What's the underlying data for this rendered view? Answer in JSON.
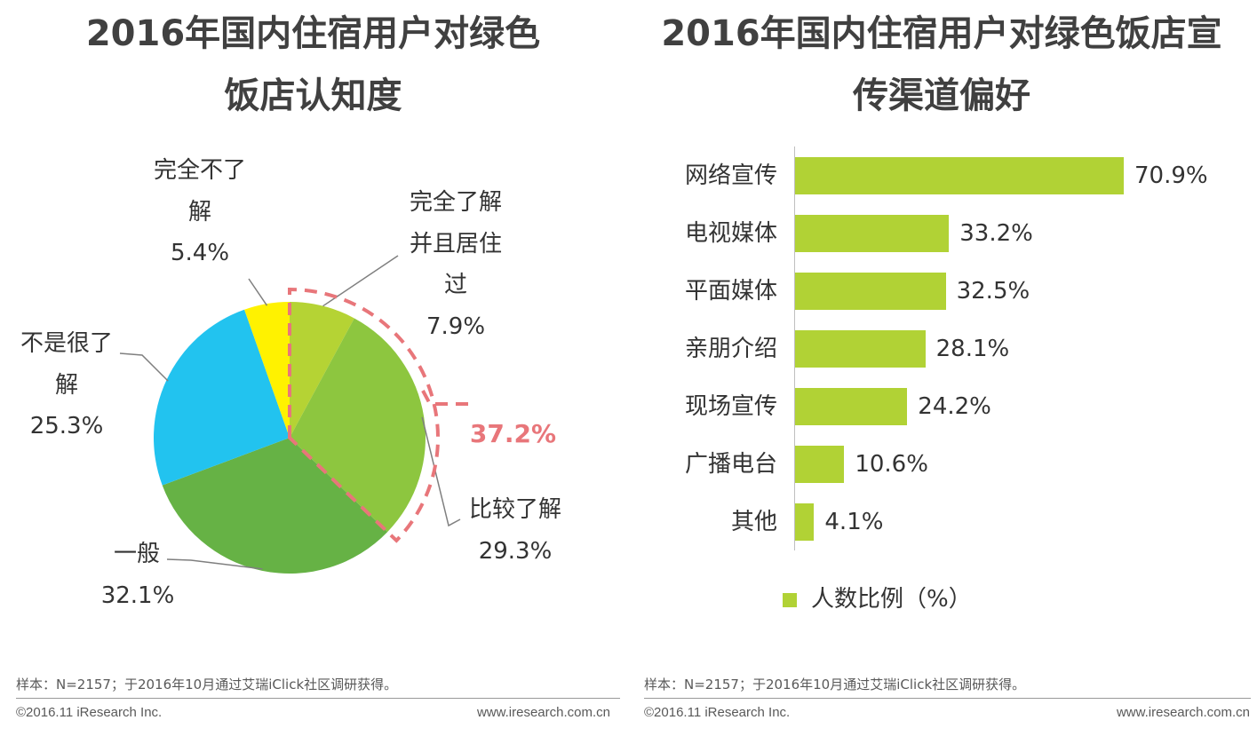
{
  "chart_data": [
    {
      "type": "pie",
      "title_lines": [
        "2016年国内住宿用户对绿色",
        "饭店认知度"
      ],
      "slices": [
        {
          "label_lines": [
            "完全了解",
            "并且居住",
            "过"
          ],
          "value": 7.9,
          "value_label": "7.9%",
          "color": "#b5d334"
        },
        {
          "label_lines": [
            "比较了解"
          ],
          "value": 29.3,
          "value_label": "29.3%",
          "color": "#8dc63f"
        },
        {
          "label_lines": [
            "一般"
          ],
          "value": 32.1,
          "value_label": "32.1%",
          "color": "#66b245"
        },
        {
          "label_lines": [
            "不是很了",
            "解"
          ],
          "value": 25.3,
          "value_label": "25.3%",
          "color": "#22c3ef"
        },
        {
          "label_lines": [
            "完全不了",
            "解"
          ],
          "value": 5.4,
          "value_label": "5.4%",
          "color": "#fff200"
        }
      ],
      "highlight": {
        "label": "37.2%",
        "color": "#e8767a",
        "covers": [
          "完全了解并且居住过",
          "比较了解"
        ]
      }
    },
    {
      "type": "bar",
      "orientation": "horizontal",
      "title_lines": [
        "2016年国内住宿用户对绿色饭店宣",
        "传渠道偏好"
      ],
      "categories": [
        "网络宣传",
        "电视媒体",
        "平面媒体",
        "亲朋介绍",
        "现场宣传",
        "广播电台",
        "其他"
      ],
      "values": [
        70.9,
        33.2,
        32.5,
        28.1,
        24.2,
        10.6,
        4.1
      ],
      "value_labels": [
        "70.9%",
        "33.2%",
        "32.5%",
        "28.1%",
        "24.2%",
        "10.6%",
        "4.1%"
      ],
      "series_name": "人数比例（%）",
      "color": "#b1d235",
      "xlim": [
        0,
        75
      ]
    }
  ],
  "footer": {
    "note": "样本：N=2157；于2016年10月通过艾瑞iClick社区调研获得。",
    "copyright": "©2016.11 iResearch Inc.",
    "site": "www.iresearch.com.cn"
  }
}
